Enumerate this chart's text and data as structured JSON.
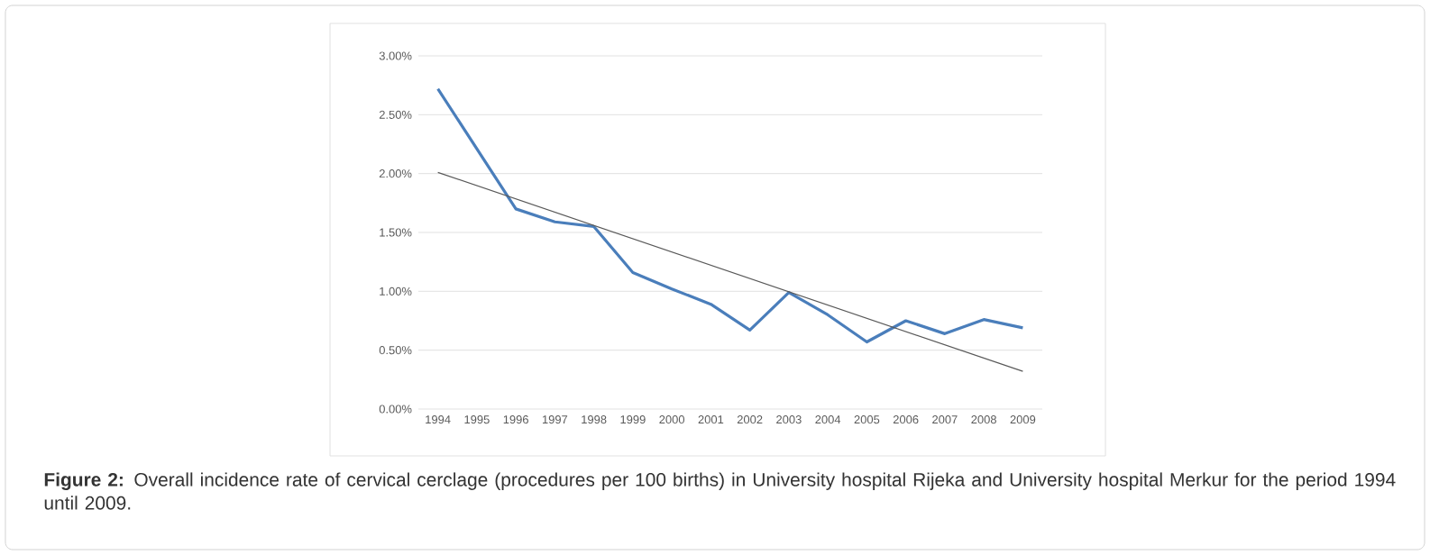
{
  "chart_data": {
    "type": "line",
    "x": [
      1994,
      1995,
      1996,
      1997,
      1998,
      1999,
      2000,
      2001,
      2002,
      2003,
      2004,
      2005,
      2006,
      2007,
      2008,
      2009
    ],
    "series": [
      {
        "color": "#4a7ebb",
        "values": [
          2.72,
          2.21,
          1.7,
          1.59,
          1.55,
          1.16,
          1.02,
          0.89,
          0.67,
          0.99,
          0.8,
          0.57,
          0.75,
          0.64,
          0.76,
          0.69
        ]
      },
      {
        "type": "line",
        "color": "#595959",
        "x": [
          1994,
          2009
        ],
        "values": [
          2.01,
          0.32
        ]
      }
    ],
    "xlim": [
      1993.5,
      2009.5
    ],
    "xticks": [
      1994,
      1995,
      1996,
      1997,
      1998,
      1999,
      2000,
      2001,
      2002,
      2003,
      2004,
      2005,
      2006,
      2007,
      2008,
      2009
    ],
    "ylim": [
      0,
      3
    ],
    "yticks": [
      {
        "value": 0,
        "label": "0.00%"
      },
      {
        "value": 0.5,
        "label": "0.50%"
      },
      {
        "value": 1,
        "label": "1.00%"
      },
      {
        "value": 1.5,
        "label": "1.50%"
      },
      {
        "value": 2,
        "label": "2.00%"
      },
      {
        "value": 2.5,
        "label": "2.50%"
      },
      {
        "value": 3,
        "label": "3.00%"
      }
    ],
    "grid": "y",
    "marker": "none",
    "line_style": "solid",
    "annotations": [
      "**Figure 2:** Overall incidence rate of cervical cerclage (procedures per 100 births) in University hospital Rijeka and University hospital Merkur for the period 1994 until 2009."
    ]
  }
}
